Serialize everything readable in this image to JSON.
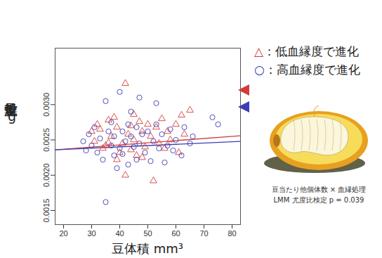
{
  "chart_data": {
    "type": "scatter",
    "xlabel": "豆体積 mm³",
    "ylabel": "乾燥重量 g",
    "xlim": [
      17,
      83
    ],
    "xticks": [
      20,
      30,
      40,
      50,
      60,
      70,
      80
    ],
    "ylim": [
      0.0013,
      0.0038
    ],
    "yticks": [
      0.0015,
      {
        "value": 0.002,
        "label": "0.0020"
      },
      0.0025,
      {
        "value": 0.003,
        "label": "0.0030"
      }
    ],
    "grid": false,
    "legend": "right",
    "annotations": [
      "豆当たり他個体数 × 血縁処理",
      "LMM 尤度比検定 p = 0.039"
    ],
    "series": [
      {
        "name": "△：低血縁度で進化",
        "color": "#d23c3c",
        "marker": "triangle",
        "values": [
          [
            30,
            0.00262
          ],
          [
            31,
            0.00248
          ],
          [
            32,
            0.00272
          ],
          [
            33,
            0.00265
          ],
          [
            34,
            0.00238
          ],
          [
            35,
            0.00242
          ],
          [
            36,
            0.00278
          ],
          [
            37,
            0.00255
          ],
          [
            38,
            0.00282
          ],
          [
            39,
            0.00268
          ],
          [
            40,
            0.00232
          ],
          [
            41,
            0.00245
          ],
          [
            42,
            0.0033
          ],
          [
            42,
            0.002
          ],
          [
            43,
            0.00258
          ],
          [
            44,
            0.0027
          ],
          [
            45,
            0.00286
          ],
          [
            45,
            0.0025
          ],
          [
            46,
            0.00228
          ],
          [
            47,
            0.00276
          ],
          [
            48,
            0.00262
          ],
          [
            48,
            0.00225
          ],
          [
            49,
            0.0024
          ],
          [
            50,
            0.00272
          ],
          [
            51,
            0.00255
          ],
          [
            52,
            0.00192
          ],
          [
            53,
            0.00268
          ],
          [
            54,
            0.00245
          ],
          [
            55,
            0.0028
          ],
          [
            56,
            0.00238
          ],
          [
            57,
            0.00262
          ],
          [
            58,
            0.0025
          ],
          [
            60,
            0.00272
          ],
          [
            61,
            0.00232
          ],
          [
            62,
            0.00285
          ],
          [
            63,
            0.00258
          ],
          [
            65,
            0.00292
          ],
          [
            39,
            0.00222
          ],
          [
            44,
            0.00236
          ],
          [
            36,
            0.00246
          ]
        ],
        "trend": [
          [
            17,
            0.00236
          ],
          [
            83,
            0.00256
          ]
        ]
      },
      {
        "name": "○：高血縁度で進化",
        "color": "#3c3cb4",
        "marker": "circle",
        "values": [
          [
            27,
            0.00248
          ],
          [
            28,
            0.00235
          ],
          [
            29,
            0.00258
          ],
          [
            30,
            0.00242
          ],
          [
            31,
            0.00268
          ],
          [
            32,
            0.00232
          ],
          [
            33,
            0.00252
          ],
          [
            34,
            0.00222
          ],
          [
            35,
            0.00305
          ],
          [
            35,
            0.00162
          ],
          [
            36,
            0.00262
          ],
          [
            37,
            0.00242
          ],
          [
            37,
            0.00275
          ],
          [
            38,
            0.00228
          ],
          [
            38,
            0.00255
          ],
          [
            39,
            0.0021
          ],
          [
            40,
            0.00318
          ],
          [
            40,
            0.00238
          ],
          [
            41,
            0.00262
          ],
          [
            41,
            0.0023
          ],
          [
            42,
            0.00248
          ],
          [
            43,
            0.00215
          ],
          [
            43,
            0.00272
          ],
          [
            44,
            0.00255
          ],
          [
            45,
            0.0024
          ],
          [
            46,
            0.00222
          ],
          [
            46,
            0.00268
          ],
          [
            47,
            0.0031
          ],
          [
            47,
            0.00245
          ],
          [
            48,
            0.00258
          ],
          [
            49,
            0.00232
          ],
          [
            50,
            0.00262
          ],
          [
            51,
            0.0022
          ],
          [
            52,
            0.00248
          ],
          [
            53,
            0.00272
          ],
          [
            54,
            0.00238
          ],
          [
            55,
            0.00258
          ],
          [
            56,
            0.00218
          ],
          [
            57,
            0.00242
          ],
          [
            58,
            0.00265
          ],
          [
            59,
            0.00235
          ],
          [
            60,
            0.0025
          ],
          [
            62,
            0.00228
          ],
          [
            63,
            0.00268
          ],
          [
            65,
            0.00245
          ],
          [
            66,
            0.00255
          ],
          [
            73,
            0.00282
          ],
          [
            75,
            0.00272
          ],
          [
            53,
            0.00302
          ],
          [
            44,
            0.0029
          ]
        ],
        "trend": [
          [
            17,
            0.00236
          ],
          [
            83,
            0.00248
          ]
        ]
      }
    ]
  }
}
